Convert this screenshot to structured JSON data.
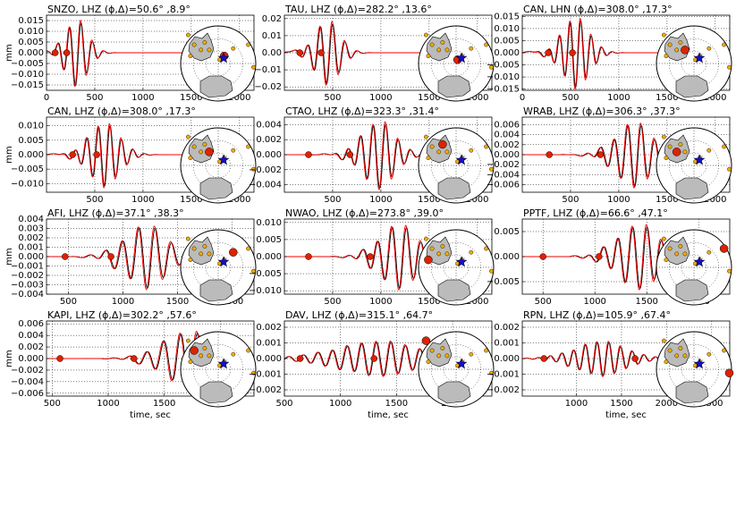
{
  "figure": {
    "ylabel": "mm",
    "xlabel": "time, sec",
    "colors": {
      "observed": "#000000",
      "synthetic": "#ff0000",
      "marker": "#dd2200",
      "land": "#bbbbbb",
      "station": "#f2a900",
      "event": "#1010cc"
    }
  },
  "chart_data": [
    {
      "type": "line",
      "title": "SNZO, LHZ (ϕ,Δ)=50.6° ,8.9°",
      "xlim": [
        0,
        2150
      ],
      "ylim": [
        -0.0175,
        0.0175
      ],
      "xticks": [
        0,
        500,
        1000,
        1500,
        2000
      ],
      "yticks": [
        -0.015,
        -0.01,
        -0.005,
        0,
        0.005,
        0.01,
        0.015
      ],
      "yticklabels": [
        "−0.015",
        "−0.010",
        "−0.005",
        "0.000",
        "0.005",
        "0.010",
        "0.015"
      ],
      "show_xticklabels": true,
      "markers": [
        90,
        210
      ],
      "wave": {
        "t0": 330,
        "amp": 0.0155,
        "period": 120,
        "decay": 1.1,
        "tail": 180
      },
      "map_station": [
        0.58,
        0.4
      ]
    },
    {
      "type": "line",
      "title": "TAU, LHZ (ϕ,Δ)=282.2° ,13.6°",
      "xlim": [
        0,
        2150
      ],
      "ylim": [
        -0.022,
        0.022
      ],
      "xticks": [
        500,
        1000,
        1500,
        2000
      ],
      "yticks": [
        -0.02,
        -0.01,
        0,
        0.01,
        0.02
      ],
      "yticklabels": [
        "−0.02",
        "−0.01",
        "0.00",
        "0.01",
        "0.02"
      ],
      "show_xticklabels": true,
      "markers": [
        160,
        380
      ],
      "wave": {
        "t0": 470,
        "amp": 0.019,
        "period": 130,
        "decay": 1.1,
        "tail": 200
      },
      "map_station": [
        0.52,
        0.45
      ]
    },
    {
      "type": "line",
      "title": "CAN, LHN (ϕ,Δ)=308.0° ,17.3°",
      "xlim": [
        0,
        2150
      ],
      "ylim": [
        -0.0155,
        0.0155
      ],
      "xticks": [
        0,
        500,
        1000,
        1500,
        2000
      ],
      "yticks": [
        -0.015,
        -0.01,
        -0.005,
        0,
        0.005,
        0.01,
        0.015
      ],
      "yticklabels": [
        "−0.015",
        "−0.010",
        "−0.005",
        "0.000",
        "0.005",
        "0.010",
        "0.015"
      ],
      "show_xticklabels": true,
      "markers": [
        270,
        520
      ],
      "wave": {
        "t0": 580,
        "amp": 0.0145,
        "period": 110,
        "decay": 1.0,
        "tail": 220
      },
      "map_station": [
        0.38,
        0.32
      ]
    },
    {
      "type": "line",
      "title": "CAN, LHZ (ϕ,Δ)=308.0° ,17.3°",
      "xlim": [
        0,
        2150
      ],
      "ylim": [
        -0.013,
        0.013
      ],
      "xticks": [
        500,
        1000,
        1500,
        2000
      ],
      "yticks": [
        -0.01,
        -0.005,
        0,
        0.005,
        0.01
      ],
      "yticklabels": [
        "−0.010",
        "−0.005",
        "0.000",
        "0.005",
        "0.010"
      ],
      "show_xticklabels": true,
      "markers": [
        270,
        520
      ],
      "wave": {
        "t0": 630,
        "amp": 0.011,
        "period": 120,
        "decay": 1.0,
        "tail": 250
      },
      "map_station": [
        0.38,
        0.32
      ]
    },
    {
      "type": "line",
      "title": "CTAO, LHZ (ϕ,Δ)=323.3° ,31.4°",
      "xlim": [
        0,
        2150
      ],
      "ylim": [
        -0.005,
        0.005
      ],
      "xticks": [
        500,
        1000,
        1500,
        2000
      ],
      "yticks": [
        -0.004,
        -0.002,
        0,
        0.002,
        0.004
      ],
      "yticklabels": [
        "−0.004",
        "−0.002",
        "0.000",
        "0.002",
        "0.004"
      ],
      "show_xticklabels": true,
      "markers": [
        250,
        680
      ],
      "wave": {
        "t0": 1020,
        "amp": 0.0045,
        "period": 130,
        "decay": 1.2,
        "tail": 280
      },
      "map_station": [
        0.32,
        0.22
      ]
    },
    {
      "type": "line",
      "title": "WRAB, LHZ (ϕ,Δ)=306.3° ,37.3°",
      "xlim": [
        0,
        2150
      ],
      "ylim": [
        -0.0075,
        0.0075
      ],
      "xticks": [
        500,
        1000,
        1500,
        2000
      ],
      "yticks": [
        -0.006,
        -0.004,
        -0.002,
        0,
        0.002,
        0.004,
        0.006
      ],
      "yticklabels": [
        "−0.006",
        "−0.004",
        "−0.002",
        "0.000",
        "0.002",
        "0.004",
        "0.006"
      ],
      "show_xticklabels": true,
      "markers": [
        280,
        810
      ],
      "wave": {
        "t0": 1200,
        "amp": 0.0065,
        "period": 140,
        "decay": 1.0,
        "tail": 300
      },
      "map_station": [
        0.27,
        0.32
      ]
    },
    {
      "type": "line",
      "title": "AFI, LHZ (ϕ,Δ)=37.1° ,38.3°",
      "xlim": [
        300,
        2200
      ],
      "ylim": [
        -0.004,
        0.004
      ],
      "xticks": [
        500,
        1000,
        1500,
        2000
      ],
      "yticks": [
        -0.004,
        -0.003,
        -0.002,
        -0.001,
        0,
        0.001,
        0.002,
        0.003,
        0.004
      ],
      "yticklabels": [
        "−0.004",
        "−0.003",
        "−0.002",
        "−0.001",
        "0.000",
        "0.001",
        "0.002",
        "0.003",
        "0.004"
      ],
      "show_xticklabels": true,
      "markers": [
        470,
        890
      ],
      "wave": {
        "t0": 1260,
        "amp": 0.0034,
        "period": 150,
        "decay": 1.1,
        "tail": 320
      },
      "map_station": [
        0.7,
        0.3
      ]
    },
    {
      "type": "line",
      "title": "NWAO, LHZ (ϕ,Δ)=273.8° ,39.0°",
      "xlim": [
        0,
        2150
      ],
      "ylim": [
        -0.011,
        0.011
      ],
      "xticks": [
        500,
        1000,
        1500,
        2000
      ],
      "yticks": [
        -0.01,
        -0.005,
        0,
        0.005,
        0.01
      ],
      "yticklabels": [
        "−0.010",
        "−0.005",
        "0.000",
        "0.005",
        "0.010"
      ],
      "show_xticklabels": true,
      "markers": [
        250,
        890
      ],
      "wave": {
        "t0": 1230,
        "amp": 0.0095,
        "period": 150,
        "decay": 1.0,
        "tail": 320
      },
      "map_station": [
        0.13,
        0.4
      ]
    },
    {
      "type": "line",
      "title": "PPTF, LHZ (ϕ,Δ)=66.6° ,47.1°",
      "xlim": [
        300,
        2300
      ],
      "ylim": [
        -0.0075,
        0.0075
      ],
      "xticks": [
        500,
        1000,
        1500,
        2000
      ],
      "yticks": [
        -0.005,
        0,
        0.005
      ],
      "yticklabels": [
        "−0.005",
        "0.000",
        "0.005"
      ],
      "show_xticklabels": true,
      "markers": [
        500,
        1040
      ],
      "wave": {
        "t0": 1470,
        "amp": 0.0065,
        "period": 140,
        "decay": 1.0,
        "tail": 330
      },
      "map_station": [
        0.9,
        0.25
      ]
    },
    {
      "type": "line",
      "title": "KAPI, LHZ (ϕ,Δ)=302.2° ,57.6°",
      "xlim": [
        450,
        2300
      ],
      "ylim": [
        -0.0065,
        0.0065
      ],
      "xticks": [
        500,
        1000,
        1500,
        2000
      ],
      "yticks": [
        -0.006,
        -0.004,
        -0.002,
        0,
        0.002,
        0.004,
        0.006
      ],
      "yticklabels": [
        "−0.006",
        "−0.004",
        "−0.002",
        "0.000",
        "0.002",
        "0.004",
        "0.006"
      ],
      "show_xticklabels": true,
      "markers": [
        570,
        1230
      ],
      "wave": {
        "t0": 1760,
        "amp": 0.0048,
        "period": 150,
        "decay": 0.9,
        "tail": 360
      },
      "map_station": [
        0.18,
        0.25
      ]
    },
    {
      "type": "line",
      "title": "DAV, LHZ (ϕ,Δ)=315.1° ,64.7°",
      "xlim": [
        500,
        2350
      ],
      "ylim": [
        -0.0024,
        0.0024
      ],
      "xticks": [
        500,
        1000,
        1500,
        2000
      ],
      "yticks": [
        -0.002,
        -0.001,
        0,
        0.001,
        0.002
      ],
      "yticklabels": [
        "−0.002",
        "−0.001",
        "0.000",
        "0.001",
        "0.002"
      ],
      "show_xticklabels": true,
      "markers": [
        640,
        1300
      ],
      "wave": {
        "t0": 1420,
        "amp": 0.0011,
        "period": 130,
        "decay": 0.5,
        "tail": 600
      },
      "map_station": [
        0.1,
        0.12
      ]
    },
    {
      "type": "line",
      "title": "RPN, LHZ (ϕ,Δ)=105.9° ,67.4°",
      "xlim": [
        400,
        2700
      ],
      "ylim": [
        -0.0024,
        0.0024
      ],
      "xticks": [
        1000,
        1500,
        2000,
        2500
      ],
      "yticks": [
        -0.002,
        -0.001,
        0,
        0.001,
        0.002
      ],
      "yticklabels": [
        "−0.002",
        "−0.001",
        "0.000",
        "0.001",
        "0.002"
      ],
      "show_xticklabels": true,
      "markers": [
        640,
        1650
      ],
      "wave": {
        "t0": 1330,
        "amp": 0.0011,
        "period": 130,
        "decay": 0.6,
        "tail": 450
      },
      "map_station": [
        0.97,
        0.55
      ]
    }
  ]
}
